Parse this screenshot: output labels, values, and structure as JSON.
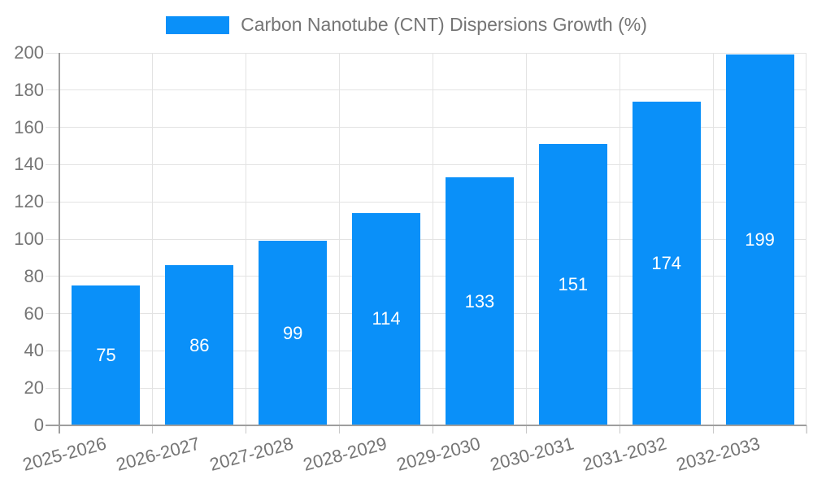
{
  "legend": {
    "series_label": "Carbon Nanotube (CNT) Dispersions Growth (%)"
  },
  "chart_data": {
    "type": "bar",
    "title": "Carbon Nanotube (CNT) Dispersions Growth (%)",
    "categories": [
      "2025-2026",
      "2026-2027",
      "2027-2028",
      "2028-2029",
      "2029-2030",
      "2030-2031",
      "2031-2032",
      "2032-2033"
    ],
    "values": [
      75,
      86,
      99,
      114,
      133,
      151,
      174,
      199
    ],
    "xlabel": "",
    "ylabel": "",
    "ylim": [
      0,
      200
    ],
    "ytick_step": 20,
    "yticks": [
      0,
      20,
      40,
      60,
      80,
      100,
      120,
      140,
      160,
      180,
      200
    ],
    "grid": true,
    "legend_position": "top-center",
    "x_label_rotation": -15,
    "bar_color": "#0a90f9",
    "value_label_color": "#ffffff",
    "axis_color": "#9e9e9e",
    "gridline_color": "#e3e3e3",
    "tick_color": "#c9c9c9",
    "label_color": "#757575"
  }
}
